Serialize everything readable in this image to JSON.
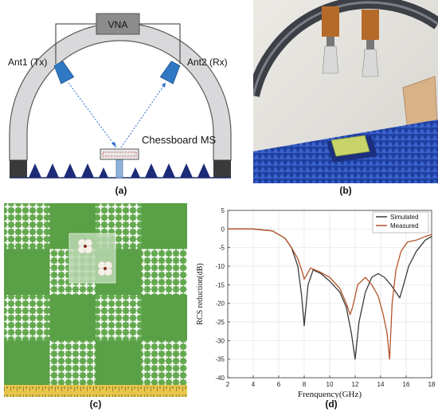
{
  "figure": {
    "panel_a": {
      "caption": "(a)",
      "vna_label": "VNA",
      "ant1_label": "Ant1 (Tx)",
      "ant2_label": "Ant2 (Rx)",
      "ms_label": "Chessboard MS"
    },
    "panel_b": {
      "caption": "(b)"
    },
    "panel_c": {
      "caption": "(c)"
    },
    "panel_d": {
      "caption": "(d)"
    }
  },
  "chart_data": {
    "type": "line",
    "title": "",
    "xlabel": "Frenquency(GHz)",
    "ylabel": "RCS reduction(dB)",
    "xlim": [
      2,
      18
    ],
    "ylim": [
      -40,
      5
    ],
    "xticks": [
      2,
      4,
      6,
      8,
      10,
      12,
      14,
      16,
      18
    ],
    "yticks": [
      5,
      0,
      -5,
      -10,
      -15,
      -20,
      -25,
      -30,
      -35,
      -40
    ],
    "grid": true,
    "legend": "top-right",
    "series": [
      {
        "name": "Simulated",
        "color": "#3a3a3a",
        "x": [
          2,
          4,
          5.5,
          6.5,
          7,
          7.5,
          7.8,
          8,
          8.3,
          8.7,
          9.3,
          10,
          10.8,
          11.3,
          11.7,
          12,
          12.3,
          12.8,
          13.3,
          13.8,
          14.3,
          14.8,
          15.2,
          15.5,
          15.8,
          16.2,
          16.8,
          17.5,
          18
        ],
        "y": [
          0,
          0,
          -0.5,
          -2.5,
          -5,
          -10,
          -18,
          -26,
          -15,
          -11,
          -12,
          -14,
          -17,
          -21,
          -28,
          -35,
          -25,
          -17,
          -13,
          -12,
          -13,
          -15,
          -17,
          -18.5,
          -15,
          -10,
          -6,
          -3,
          -2
        ]
      },
      {
        "name": "Measured",
        "color": "#b3542a",
        "x": [
          2,
          4,
          5.5,
          6.5,
          7,
          7.5,
          7.8,
          8,
          8.5,
          9.2,
          10,
          10.8,
          11.3,
          11.6,
          11.8,
          12.2,
          12.8,
          13.3,
          13.8,
          14.2,
          14.5,
          14.7,
          14.9,
          15.2,
          15.6,
          16.1,
          16.8,
          17.5,
          18
        ],
        "y": [
          0,
          0,
          -0.5,
          -2.5,
          -5,
          -8,
          -11,
          -13.5,
          -10.5,
          -11.5,
          -13,
          -16,
          -20,
          -23,
          -21,
          -15,
          -13,
          -15,
          -18,
          -23,
          -28,
          -35,
          -20,
          -11,
          -6,
          -3.5,
          -3,
          -2,
          -1.5
        ]
      }
    ]
  }
}
